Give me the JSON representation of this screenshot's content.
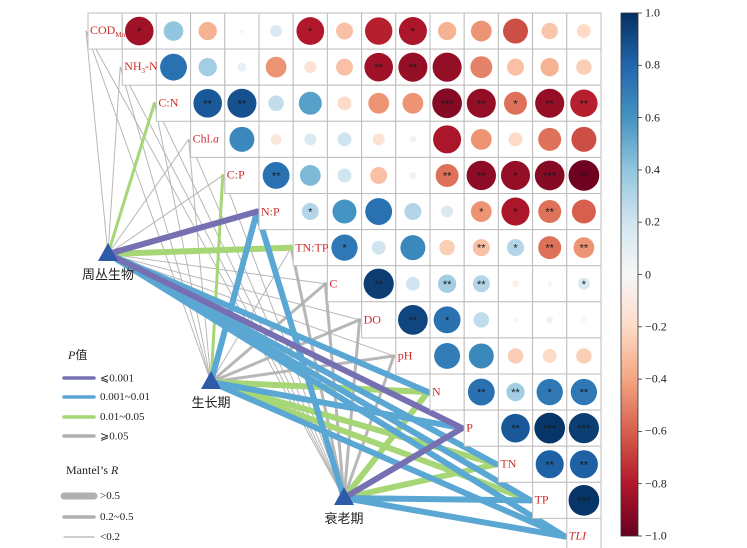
{
  "chart_data": {
    "type": "heatmap",
    "variables": [
      "COD_Mn",
      "NH3-N",
      "C:N",
      "Chl.a",
      "C:P",
      "N:P",
      "TN:TP",
      "C",
      "DO",
      "pH",
      "N",
      "P",
      "TN",
      "TP",
      "TLI"
    ],
    "variable_labels": [
      {
        "main": "COD",
        "sub": "Mn",
        "italic": false
      },
      {
        "main": "NH",
        "sub": "3",
        "after": "-N",
        "italic": false
      },
      {
        "main": "C:N",
        "italic": false
      },
      {
        "main": "Chl.",
        "italic_suffix": "a"
      },
      {
        "main": "C:P",
        "italic": false
      },
      {
        "main": "N:P",
        "italic": false
      },
      {
        "main": "TN:TP",
        "italic": false
      },
      {
        "main": "C",
        "italic": false
      },
      {
        "main": "DO",
        "italic": false
      },
      {
        "main": "pH",
        "italic": false
      },
      {
        "main": "N",
        "italic": false
      },
      {
        "main": "P",
        "italic": false
      },
      {
        "main": "TN",
        "italic": false
      },
      {
        "main": "TP",
        "italic": false
      },
      {
        "main": "TLI",
        "italic": true
      }
    ],
    "correlations": [
      [
        null,
        -0.85,
        0.4,
        -0.35,
        0.02,
        0.15,
        -0.8,
        -0.3,
        -0.78,
        -0.82,
        -0.35,
        -0.45,
        -0.65,
        -0.28,
        -0.2
      ],
      [
        null,
        null,
        0.75,
        0.35,
        0.08,
        -0.45,
        -0.15,
        -0.3,
        -0.85,
        -0.88,
        -0.88,
        -0.5,
        -0.3,
        -0.35,
        -0.25
      ],
      [
        null,
        null,
        null,
        0.85,
        0.88,
        0.25,
        0.55,
        -0.2,
        -0.45,
        -0.45,
        -0.92,
        -0.88,
        -0.55,
        -0.88,
        -0.78
      ],
      [
        null,
        null,
        null,
        null,
        0.65,
        -0.12,
        0.15,
        0.2,
        -0.15,
        0.05,
        -0.82,
        -0.45,
        -0.2,
        -0.55,
        -0.65
      ],
      [
        null,
        null,
        null,
        null,
        null,
        0.75,
        0.45,
        0.2,
        -0.3,
        0.05,
        -0.55,
        -0.9,
        -0.88,
        -0.92,
        -0.98
      ],
      [
        null,
        null,
        null,
        null,
        null,
        null,
        0.3,
        0.6,
        0.75,
        0.3,
        0.15,
        -0.45,
        -0.82,
        -0.55,
        -0.6
      ],
      [
        null,
        null,
        null,
        null,
        null,
        null,
        null,
        0.72,
        0.2,
        0.65,
        -0.25,
        -0.3,
        0.3,
        -0.55,
        -0.45
      ],
      [
        null,
        null,
        null,
        null,
        null,
        null,
        null,
        null,
        0.95,
        0.2,
        0.35,
        0.3,
        -0.05,
        0.02,
        0.15
      ],
      [
        null,
        null,
        null,
        null,
        null,
        null,
        null,
        null,
        null,
        0.92,
        0.75,
        0.25,
        -0.02,
        0.05,
        -0.02
      ],
      [
        null,
        null,
        null,
        null,
        null,
        null,
        null,
        null,
        null,
        null,
        0.7,
        0.65,
        -0.25,
        -0.2,
        -0.25
      ],
      [
        null,
        null,
        null,
        null,
        null,
        null,
        null,
        null,
        null,
        null,
        null,
        0.75,
        0.35,
        0.72,
        0.72
      ],
      [
        null,
        null,
        null,
        null,
        null,
        null,
        null,
        null,
        null,
        null,
        null,
        null,
        0.85,
        0.98,
        0.95
      ],
      [
        null,
        null,
        null,
        null,
        null,
        null,
        null,
        null,
        null,
        null,
        null,
        null,
        null,
        0.82,
        0.82
      ],
      [
        null,
        null,
        null,
        null,
        null,
        null,
        null,
        null,
        null,
        null,
        null,
        null,
        null,
        null,
        0.98
      ],
      [
        null,
        null,
        null,
        null,
        null,
        null,
        null,
        null,
        null,
        null,
        null,
        null,
        null,
        null,
        null
      ]
    ],
    "significance": [
      [
        null,
        "*",
        "",
        "",
        "",
        "",
        "*",
        "",
        "",
        "*",
        "",
        "",
        "",
        "",
        ""
      ],
      [
        null,
        null,
        "",
        "",
        "",
        "",
        "",
        "",
        "**",
        "**",
        "",
        "",
        "",
        "",
        ""
      ],
      [
        null,
        null,
        null,
        "**",
        "**",
        "",
        "",
        "",
        "",
        "",
        "***",
        "**",
        "*",
        "**",
        "**"
      ],
      [
        null,
        null,
        null,
        null,
        "",
        "",
        "",
        "",
        "",
        "",
        "",
        "",
        "",
        "",
        ""
      ],
      [
        null,
        null,
        null,
        null,
        null,
        "**",
        "",
        "",
        "",
        "",
        "**",
        "**",
        "*",
        "***",
        "**"
      ],
      [
        null,
        null,
        null,
        null,
        null,
        null,
        "*",
        "",
        "",
        "",
        "",
        "*",
        "*",
        "**",
        ""
      ],
      [
        null,
        null,
        null,
        null,
        null,
        null,
        null,
        "*",
        "",
        "",
        "",
        "**",
        "*",
        "**",
        "**"
      ],
      [
        null,
        null,
        null,
        null,
        null,
        null,
        null,
        null,
        "**",
        "",
        "**",
        "**",
        "",
        "",
        "*"
      ],
      [
        null,
        null,
        null,
        null,
        null,
        null,
        null,
        null,
        null,
        "**",
        "*",
        "",
        "",
        "",
        ""
      ],
      [
        null,
        null,
        null,
        null,
        null,
        null,
        null,
        null,
        null,
        null,
        "",
        "",
        "",
        "",
        ""
      ],
      [
        null,
        null,
        null,
        null,
        null,
        null,
        null,
        null,
        null,
        null,
        null,
        "**",
        "**",
        "*",
        "**"
      ],
      [
        null,
        null,
        null,
        null,
        null,
        null,
        null,
        null,
        null,
        null,
        null,
        null,
        "**",
        "***",
        "***"
      ],
      [
        null,
        null,
        null,
        null,
        null,
        null,
        null,
        null,
        null,
        null,
        null,
        null,
        null,
        "**",
        "**"
      ],
      [
        null,
        null,
        null,
        null,
        null,
        null,
        null,
        null,
        null,
        null,
        null,
        null,
        null,
        null,
        "***"
      ],
      [
        null,
        null,
        null,
        null,
        null,
        null,
        null,
        null,
        null,
        null,
        null,
        null,
        null,
        null,
        null
      ]
    ],
    "colorbar": {
      "ticks": [
        1.0,
        0.8,
        0.6,
        0.4,
        0.2,
        0,
        -0.2,
        -0.4,
        -0.6,
        -0.8,
        -1.0
      ],
      "tick_labels": [
        "1.0",
        "0.8",
        "0.6",
        "0.4",
        "0.2",
        "0",
        "−0.2",
        "−0.4",
        "−0.6",
        "−0.8",
        "−1.0"
      ],
      "range": [
        -1.0,
        1.0
      ],
      "colors": [
        "#67001f",
        "#b2182b",
        "#d6604d",
        "#f4a582",
        "#fddbc7",
        "#f7f7f7",
        "#d1e5f0",
        "#92c5de",
        "#4393c3",
        "#2166ac",
        "#053061"
      ]
    },
    "mantel": {
      "nodes": [
        "周丛生物",
        "生长期",
        "衰老期"
      ],
      "links": [
        {
          "node": 0,
          "var": 0,
          "p_class": 3,
          "r_class": 2
        },
        {
          "node": 0,
          "var": 1,
          "p_class": 3,
          "r_class": 2
        },
        {
          "node": 0,
          "var": 2,
          "p_class": 2,
          "r_class": 1
        },
        {
          "node": 0,
          "var": 3,
          "p_class": 3,
          "r_class": 2
        },
        {
          "node": 0,
          "var": 4,
          "p_class": 3,
          "r_class": 2
        },
        {
          "node": 0,
          "var": 5,
          "p_class": 0,
          "r_class": 0
        },
        {
          "node": 0,
          "var": 6,
          "p_class": 2,
          "r_class": 0
        },
        {
          "node": 0,
          "var": 7,
          "p_class": 3,
          "r_class": 2
        },
        {
          "node": 0,
          "var": 8,
          "p_class": 3,
          "r_class": 2
        },
        {
          "node": 0,
          "var": 9,
          "p_class": 3,
          "r_class": 2
        },
        {
          "node": 0,
          "var": 10,
          "p_class": 1,
          "r_class": 0
        },
        {
          "node": 0,
          "var": 11,
          "p_class": 0,
          "r_class": 0
        },
        {
          "node": 0,
          "var": 12,
          "p_class": 1,
          "r_class": 0
        },
        {
          "node": 0,
          "var": 13,
          "p_class": 1,
          "r_class": 0
        },
        {
          "node": 0,
          "var": 14,
          "p_class": 1,
          "r_class": 0
        },
        {
          "node": 1,
          "var": 0,
          "p_class": 3,
          "r_class": 2
        },
        {
          "node": 1,
          "var": 1,
          "p_class": 3,
          "r_class": 2
        },
        {
          "node": 1,
          "var": 2,
          "p_class": 3,
          "r_class": 2
        },
        {
          "node": 1,
          "var": 3,
          "p_class": 3,
          "r_class": 2
        },
        {
          "node": 1,
          "var": 4,
          "p_class": 2,
          "r_class": 1
        },
        {
          "node": 1,
          "var": 5,
          "p_class": 1,
          "r_class": 0
        },
        {
          "node": 1,
          "var": 6,
          "p_class": 3,
          "r_class": 2
        },
        {
          "node": 1,
          "var": 7,
          "p_class": 3,
          "r_class": 1
        },
        {
          "node": 1,
          "var": 8,
          "p_class": 3,
          "r_class": 1
        },
        {
          "node": 1,
          "var": 9,
          "p_class": 3,
          "r_class": 1
        },
        {
          "node": 1,
          "var": 10,
          "p_class": 2,
          "r_class": 0
        },
        {
          "node": 1,
          "var": 11,
          "p_class": 1,
          "r_class": 0
        },
        {
          "node": 1,
          "var": 12,
          "p_class": 2,
          "r_class": 0
        },
        {
          "node": 1,
          "var": 13,
          "p_class": 2,
          "r_class": 0
        },
        {
          "node": 1,
          "var": 14,
          "p_class": 1,
          "r_class": 0
        },
        {
          "node": 2,
          "var": 0,
          "p_class": 3,
          "r_class": 2
        },
        {
          "node": 2,
          "var": 1,
          "p_class": 3,
          "r_class": 2
        },
        {
          "node": 2,
          "var": 2,
          "p_class": 3,
          "r_class": 2
        },
        {
          "node": 2,
          "var": 3,
          "p_class": 3,
          "r_class": 2
        },
        {
          "node": 2,
          "var": 4,
          "p_class": 3,
          "r_class": 2
        },
        {
          "node": 2,
          "var": 5,
          "p_class": 1,
          "r_class": 0
        },
        {
          "node": 2,
          "var": 6,
          "p_class": 3,
          "r_class": 1
        },
        {
          "node": 2,
          "var": 7,
          "p_class": 3,
          "r_class": 1
        },
        {
          "node": 2,
          "var": 8,
          "p_class": 3,
          "r_class": 1
        },
        {
          "node": 2,
          "var": 9,
          "p_class": 3,
          "r_class": 1
        },
        {
          "node": 2,
          "var": 10,
          "p_class": 2,
          "r_class": 0
        },
        {
          "node": 2,
          "var": 11,
          "p_class": 0,
          "r_class": 0
        },
        {
          "node": 2,
          "var": 12,
          "p_class": 2,
          "r_class": 0
        },
        {
          "node": 2,
          "var": 13,
          "p_class": 1,
          "r_class": 0
        },
        {
          "node": 2,
          "var": 14,
          "p_class": 1,
          "r_class": 0
        }
      ]
    }
  },
  "legend": {
    "p_title_italic": "P",
    "p_title_rest": "值",
    "p_items": [
      {
        "label": "⩽0.001",
        "color": "#7670b3"
      },
      {
        "label": "0.001~0.01",
        "color": "#5ba7d4"
      },
      {
        "label": "0.01~0.05",
        "color": "#a6d675"
      },
      {
        "label": "⩾0.05",
        "color": "#b0b0b0"
      }
    ],
    "r_title_rest": "Mantel’s ",
    "r_title_italic": "R",
    "r_items": [
      {
        "label": ">0.5"
      },
      {
        "label": "0.2~0.5"
      },
      {
        "label": "<0.2"
      }
    ]
  }
}
